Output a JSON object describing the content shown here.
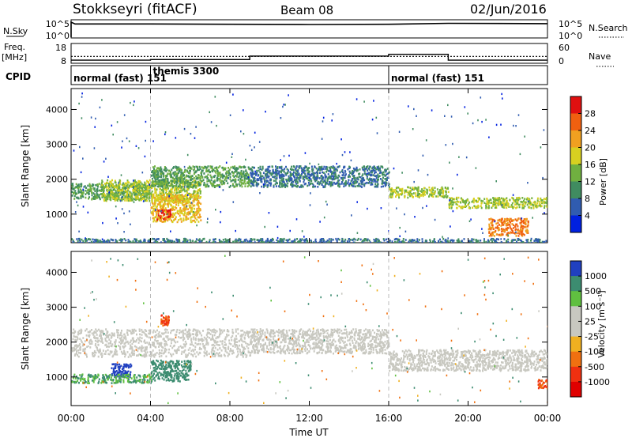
{
  "header": {
    "station": "Stokkseyri (fitACF)",
    "beam": "Beam 08",
    "date": "02/Jun/2016"
  },
  "nsky_panel": {
    "left_label": "N.Sky",
    "right_label": "N.Search",
    "left_ticks": [
      "10^5",
      "10^0"
    ],
    "right_ticks": [
      "10^5",
      "10^0"
    ]
  },
  "freq_panel": {
    "left_label_top": "Freq.",
    "left_label_bottom": "[MHz]",
    "right_label": "Nave",
    "left_ticks": [
      "18",
      "8"
    ],
    "right_ticks": [
      "60",
      "0"
    ]
  },
  "cpid_panel": {
    "label": "CPID",
    "modes": [
      {
        "name": "normal (fast) 151",
        "start_hour": 0
      },
      {
        "name": "themis 3300",
        "start_hour": 4
      },
      {
        "name": "normal (fast) 151",
        "start_hour": 16
      }
    ]
  },
  "power_panel": {
    "ylabel": "Slant Range [km]",
    "colorbar_title": "Power [dB]",
    "colorbar_ticks": [
      "28",
      "24",
      "20",
      "16",
      "12",
      "8",
      "4"
    ],
    "colorbar_colors": [
      "#e01010",
      "#f06010",
      "#f0a020",
      "#d8d020",
      "#70b040",
      "#408c60",
      "#305cb0",
      "#0020e0"
    ]
  },
  "velocity_panel": {
    "ylabel": "Slant Range [km]",
    "colorbar_title": "Velocity [m s⁻¹]",
    "colorbar_ticks": [
      "1000",
      "500",
      "100",
      "25",
      "-25",
      "-100",
      "-500",
      "-1000"
    ],
    "colorbar_colors": [
      "#2040c0",
      "#3c8c70",
      "#60c040",
      "#c8c8c0",
      "#c8c8c0",
      "#f0b020",
      "#f07010",
      "#f03010",
      "#e00000"
    ]
  },
  "xaxis": {
    "label": "Time UT",
    "ticks": [
      "00:00",
      "04:00",
      "08:00",
      "12:00",
      "16:00",
      "20:00",
      "00:00"
    ]
  },
  "chart_data": [
    {
      "type": "line",
      "title": "N.Sky / N.Search",
      "x_unit": "hours UT",
      "xlim": [
        0,
        24
      ],
      "series": [
        {
          "name": "N.Sky",
          "x": [
            0,
            0.2,
            4,
            8,
            12,
            16,
            19,
            24
          ],
          "y_log10": [
            5,
            4.4,
            4.4,
            4.3,
            4.2,
            4.3,
            4.6,
            4.5
          ]
        }
      ]
    },
    {
      "type": "line",
      "title": "Freq. / Nave",
      "x_unit": "hours UT",
      "xlim": [
        0,
        24
      ],
      "series": [
        {
          "name": "Freq. [MHz]",
          "x": [
            0,
            24
          ],
          "y": [
            11.5,
            11.5
          ]
        },
        {
          "name": "Nave",
          "x": [
            0,
            4,
            4,
            9,
            9,
            16,
            16,
            19,
            19,
            24
          ],
          "y": [
            8,
            8,
            10,
            10,
            22,
            22,
            28,
            28,
            8,
            8
          ]
        }
      ]
    },
    {
      "type": "heatmap",
      "title": "Power",
      "x_unit": "hours UT",
      "y_unit": "km",
      "xlim": [
        0,
        24
      ],
      "ylim": [
        180,
        4600
      ],
      "scale": "Power [dB]",
      "regions": [
        {
          "t": [
            0,
            4
          ],
          "r": [
            1450,
            1900
          ],
          "value": 12
        },
        {
          "t": [
            1.5,
            6.5
          ],
          "r": [
            1400,
            2000
          ],
          "value": 16
        },
        {
          "t": [
            4,
            6.5
          ],
          "r": [
            800,
            1600
          ],
          "value": 20
        },
        {
          "t": [
            4.3,
            5.0
          ],
          "r": [
            850,
            1150
          ],
          "value": 28
        },
        {
          "t": [
            4,
            9
          ],
          "r": [
            1800,
            2400
          ],
          "value": 12
        },
        {
          "t": [
            0,
            24
          ],
          "r": [
            200,
            320
          ],
          "value": 8
        },
        {
          "t": [
            9,
            16
          ],
          "r": [
            1800,
            2400
          ],
          "value": 8
        },
        {
          "t": [
            16,
            19
          ],
          "r": [
            1500,
            1800
          ],
          "value": 16
        },
        {
          "t": [
            19,
            24
          ],
          "r": [
            1200,
            1500
          ],
          "value": 16
        },
        {
          "t": [
            21,
            23
          ],
          "r": [
            400,
            900
          ],
          "value": 24
        }
      ]
    },
    {
      "type": "heatmap",
      "title": "Velocity",
      "x_unit": "hours UT",
      "y_unit": "km",
      "xlim": [
        0,
        24
      ],
      "ylim": [
        180,
        4600
      ],
      "scale": "Velocity [m s^-1]",
      "regions": [
        {
          "t": [
            0,
            9
          ],
          "r": [
            1600,
            2400
          ],
          "value": 0
        },
        {
          "t": [
            9,
            16
          ],
          "r": [
            1700,
            2400
          ],
          "value": 0
        },
        {
          "t": [
            16,
            24
          ],
          "r": [
            1200,
            1800
          ],
          "value": 0
        },
        {
          "t": [
            2,
            3
          ],
          "r": [
            1000,
            1400
          ],
          "value": 600
        },
        {
          "t": [
            4,
            6
          ],
          "r": [
            900,
            1500
          ],
          "value": 400
        },
        {
          "t": [
            0,
            4
          ],
          "r": [
            850,
            1100
          ],
          "value": 100
        },
        {
          "t": [
            4.5,
            4.9
          ],
          "r": [
            2500,
            2800
          ],
          "value": -500
        },
        {
          "t": [
            23.5,
            24
          ],
          "r": [
            700,
            950
          ],
          "value": -500
        }
      ]
    }
  ]
}
